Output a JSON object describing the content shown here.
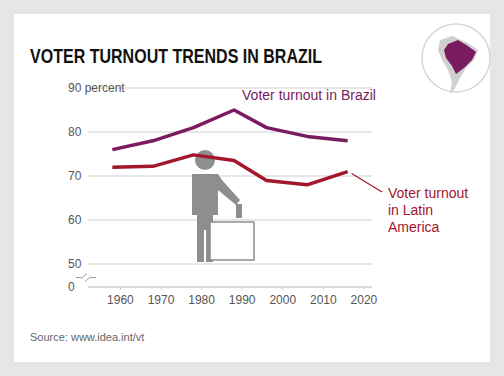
{
  "chart_data": {
    "type": "line",
    "title": "VOTER TURNOUT TRENDS IN BRAZIL",
    "x": [
      1958,
      1968,
      1978,
      1988,
      1996,
      2006,
      2016
    ],
    "series": [
      {
        "name": "Voter turnout in Brazil",
        "color": "#7b1b5f",
        "values": [
          76,
          78,
          81,
          85,
          81,
          79,
          78
        ]
      },
      {
        "name": "Voter turnout in Latin America",
        "color": "#a3162c",
        "values": [
          72,
          72.2,
          74.8,
          73.5,
          69,
          68,
          71
        ]
      }
    ],
    "xlim": [
      1952,
      2022
    ],
    "xticks": [
      1960,
      1970,
      1980,
      1990,
      2000,
      2010,
      2020
    ],
    "ylim": [
      0,
      90
    ],
    "yticks": [
      0,
      50,
      60,
      70,
      80,
      {
        "value": 90,
        "label": "90 percent"
      }
    ],
    "grid": true,
    "source": "Source: www.idea.int/vt"
  }
}
